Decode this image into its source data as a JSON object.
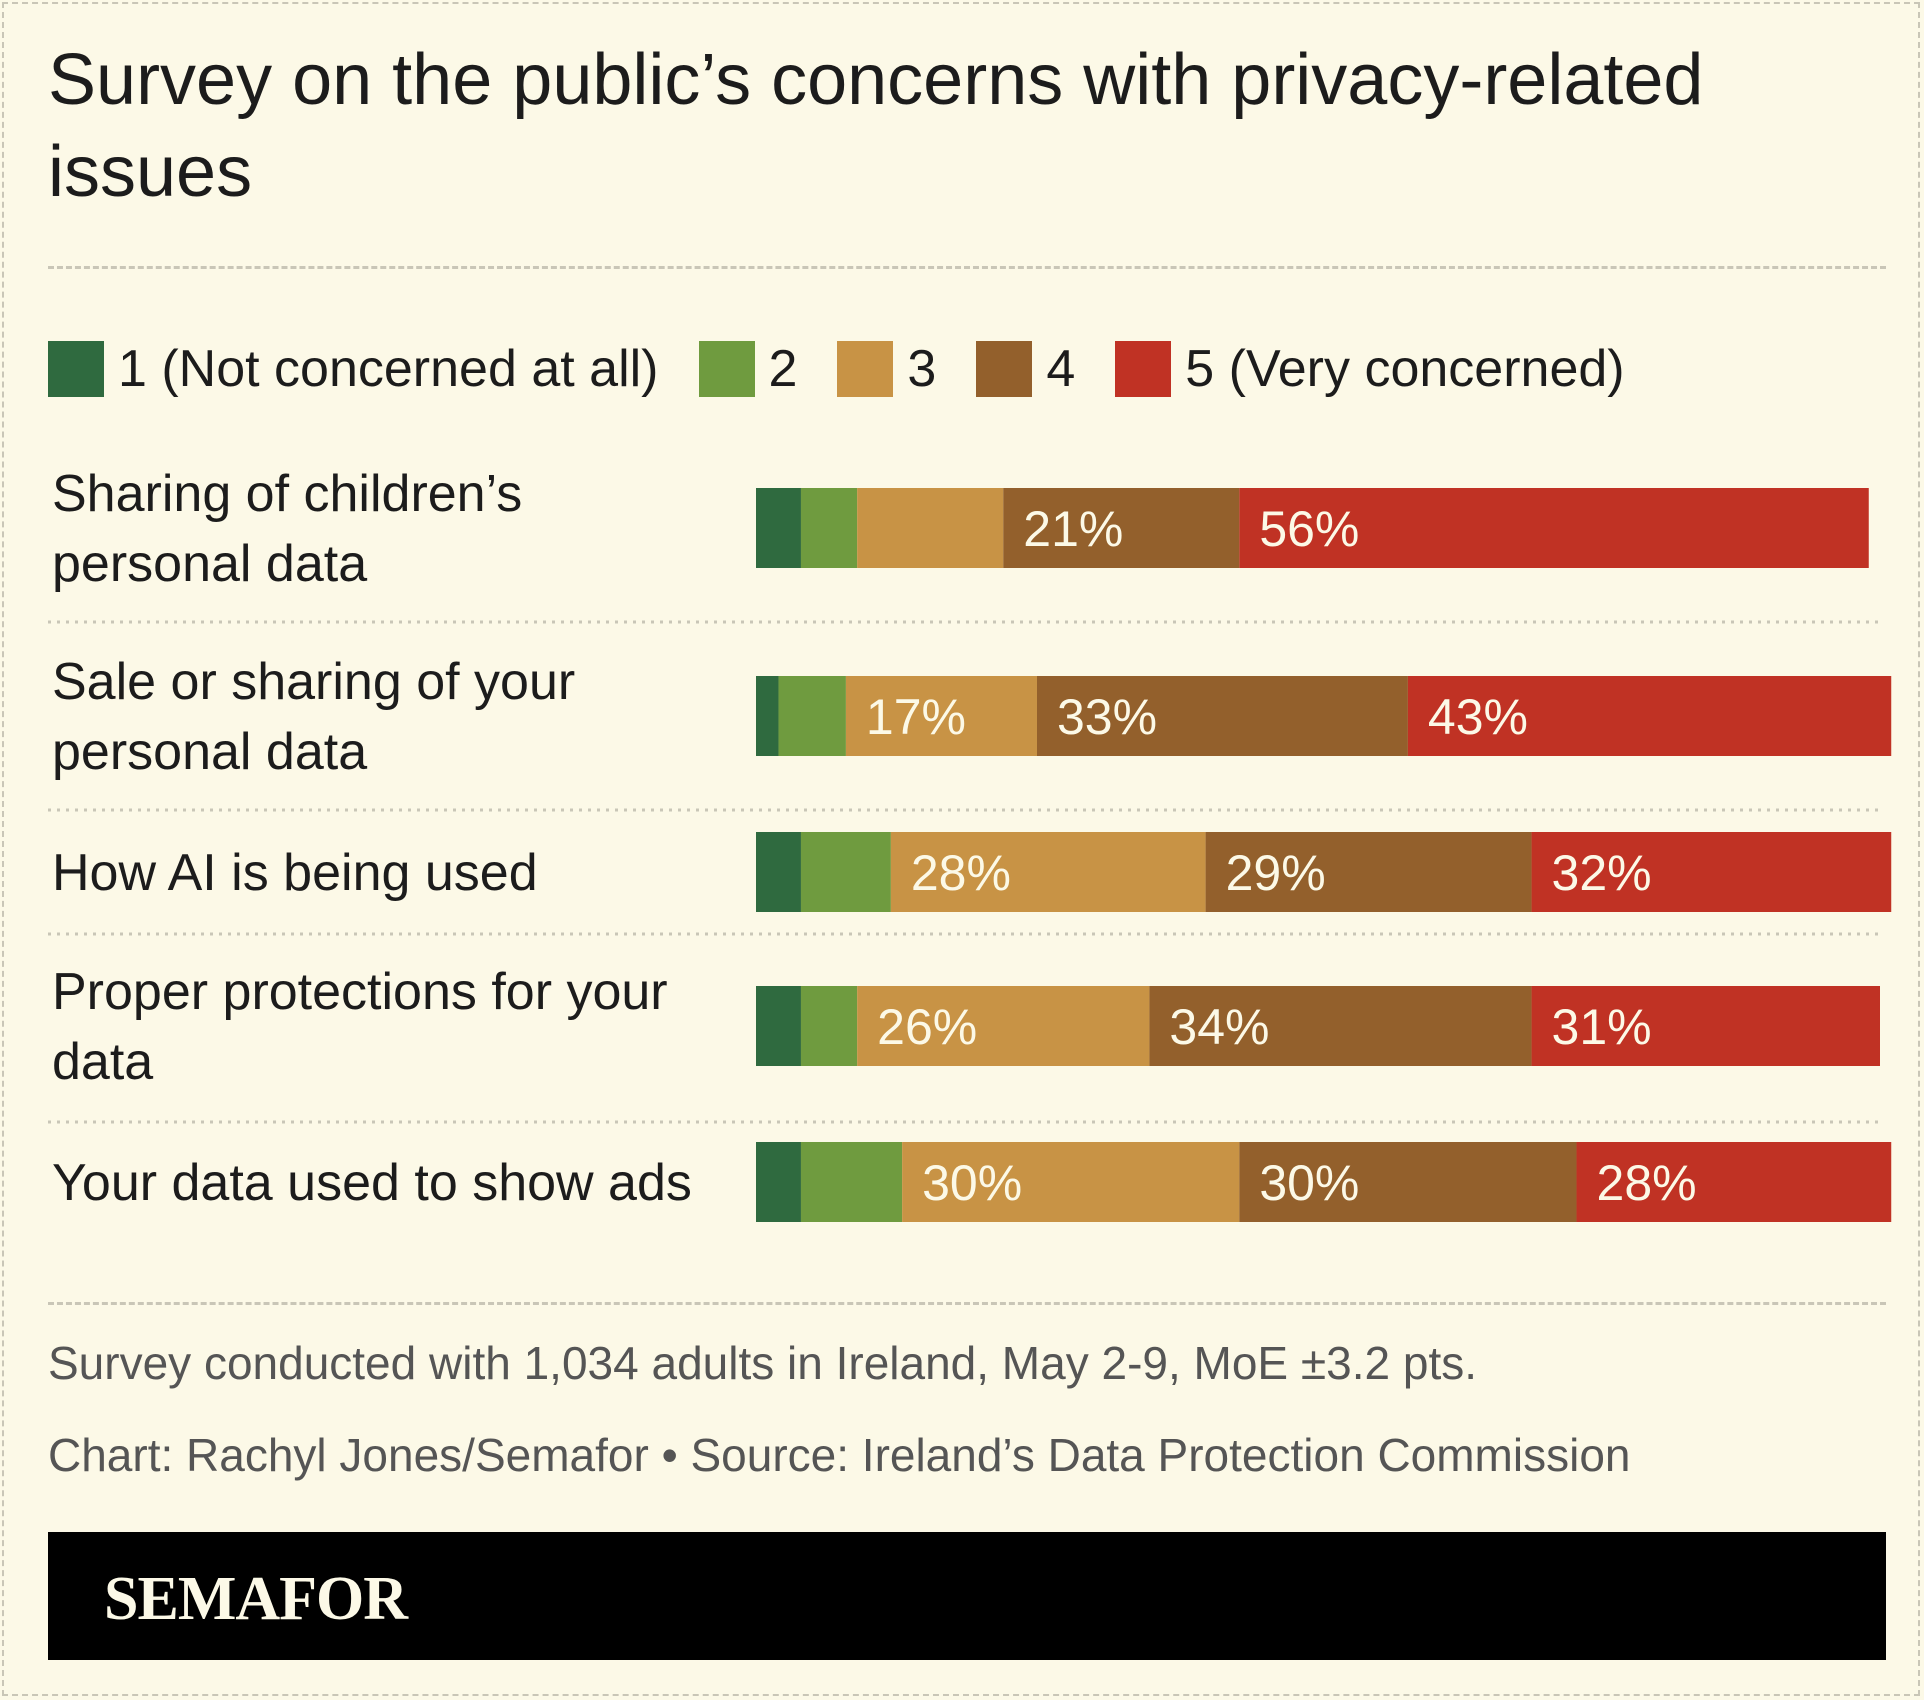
{
  "title": "Survey on the public’s concerns with privacy-related issues",
  "legend": [
    {
      "label": "1 (Not concerned at all)",
      "color": "#2f6a3f"
    },
    {
      "label": "2",
      "color": "#6f9b3f"
    },
    {
      "label": "3",
      "color": "#c89345"
    },
    {
      "label": "4",
      "color": "#93602c"
    },
    {
      "label": "5 (Very concerned)",
      "color": "#c03224"
    }
  ],
  "chart_data": {
    "type": "bar",
    "orientation": "horizontal",
    "stacked": true,
    "title": "Survey on the public’s concerns with privacy-related issues",
    "categories": [
      [
        "Sharing of children’s",
        "personal data"
      ],
      [
        "Sale or sharing of your",
        "personal data"
      ],
      [
        "How AI is being used"
      ],
      [
        "Proper protections for your",
        "data"
      ],
      [
        "Your data used to show ads"
      ]
    ],
    "series": [
      {
        "name": "1 (Not concerned at all)",
        "color": "#2f6a3f",
        "values": [
          4,
          2,
          4,
          4,
          4
        ]
      },
      {
        "name": "2",
        "color": "#6f9b3f",
        "values": [
          5,
          6,
          8,
          5,
          9
        ]
      },
      {
        "name": "3",
        "color": "#c89345",
        "values": [
          13,
          17,
          28,
          26,
          30
        ]
      },
      {
        "name": "4",
        "color": "#93602c",
        "values": [
          21,
          33,
          29,
          34,
          30
        ]
      },
      {
        "name": "5 (Very concerned)",
        "color": "#c03224",
        "values": [
          56,
          43,
          32,
          31,
          28
        ]
      }
    ],
    "data_labels": [
      [
        "",
        "",
        "",
        "21%",
        "56%"
      ],
      [
        "",
        "",
        "17%",
        "33%",
        "43%"
      ],
      [
        "",
        "",
        "28%",
        "29%",
        "32%"
      ],
      [
        "",
        "",
        "26%",
        "34%",
        "31%"
      ],
      [
        "",
        "",
        "30%",
        "30%",
        "28%"
      ]
    ],
    "xlim": [
      0,
      100
    ],
    "grid": false,
    "legend_position": "top"
  },
  "note": "Survey conducted with 1,034 adults in Ireland, May 2-9, MoE ±3.2 pts.",
  "credit": "Chart: Rachyl Jones/Semafor • Source: Ireland’s Data Protection Commission",
  "brand": "SEMAFOR"
}
